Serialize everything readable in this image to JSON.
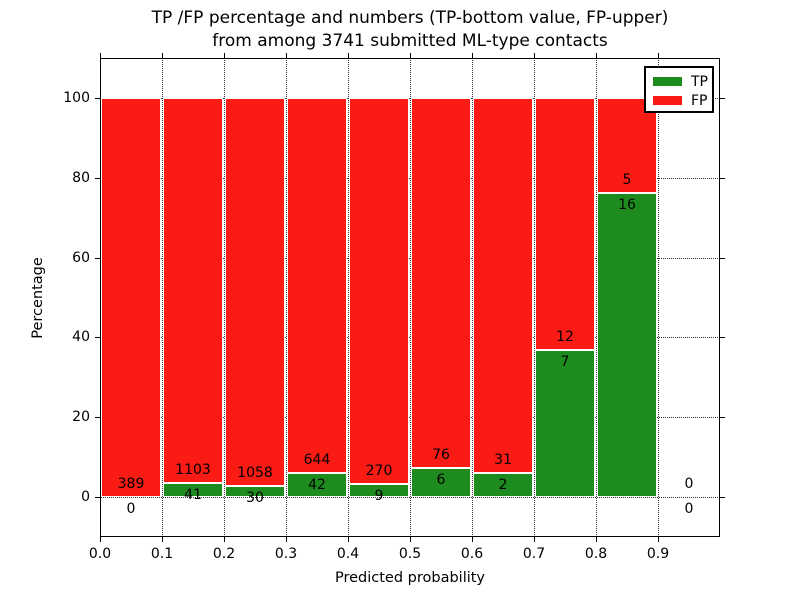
{
  "figure": {
    "title_line1": "TP /FP percentage and numbers (TP-bottom value, FP-upper)",
    "title_line2": "from among 3741 submitted ML-type contacts",
    "xlabel": "Predicted probability",
    "ylabel": "Percentage"
  },
  "chart_data": {
    "type": "bar",
    "stacked": true,
    "normalized": "each bar scaled to 100%",
    "title": "TP /FP percentage and numbers (TP-bottom value, FP-upper) from among 3741 submitted ML-type contacts",
    "xlabel": "Predicted probability",
    "ylabel": "Percentage",
    "total_contacts": 3741,
    "bin_edges": [
      0.0,
      0.1,
      0.2,
      0.3,
      0.4,
      0.5,
      0.6,
      0.7,
      0.8,
      0.9,
      1.0
    ],
    "series": [
      {
        "name": "TP",
        "color": "#1e8b1e",
        "counts": [
          0,
          41,
          30,
          42,
          9,
          6,
          2,
          7,
          16,
          0
        ]
      },
      {
        "name": "FP",
        "color": "#fb1b15",
        "counts": [
          389,
          1103,
          1058,
          644,
          270,
          76,
          31,
          12,
          5,
          0
        ]
      }
    ],
    "tp_percent_of_bin": [
      0,
      3.58,
      2.76,
      6.12,
      3.23,
      7.32,
      6.06,
      36.84,
      76.19,
      0
    ],
    "xticks": [
      "0.0",
      "0.1",
      "0.2",
      "0.3",
      "0.4",
      "0.5",
      "0.6",
      "0.7",
      "0.8",
      "0.9"
    ],
    "yticks": [
      0,
      20,
      40,
      60,
      80,
      100
    ],
    "xlim": [
      0.0,
      1.0
    ],
    "ylim": [
      -10,
      110
    ],
    "grid": "dotted both axes",
    "legend_position": "upper right",
    "legend_entries": [
      "TP",
      "FP"
    ]
  }
}
